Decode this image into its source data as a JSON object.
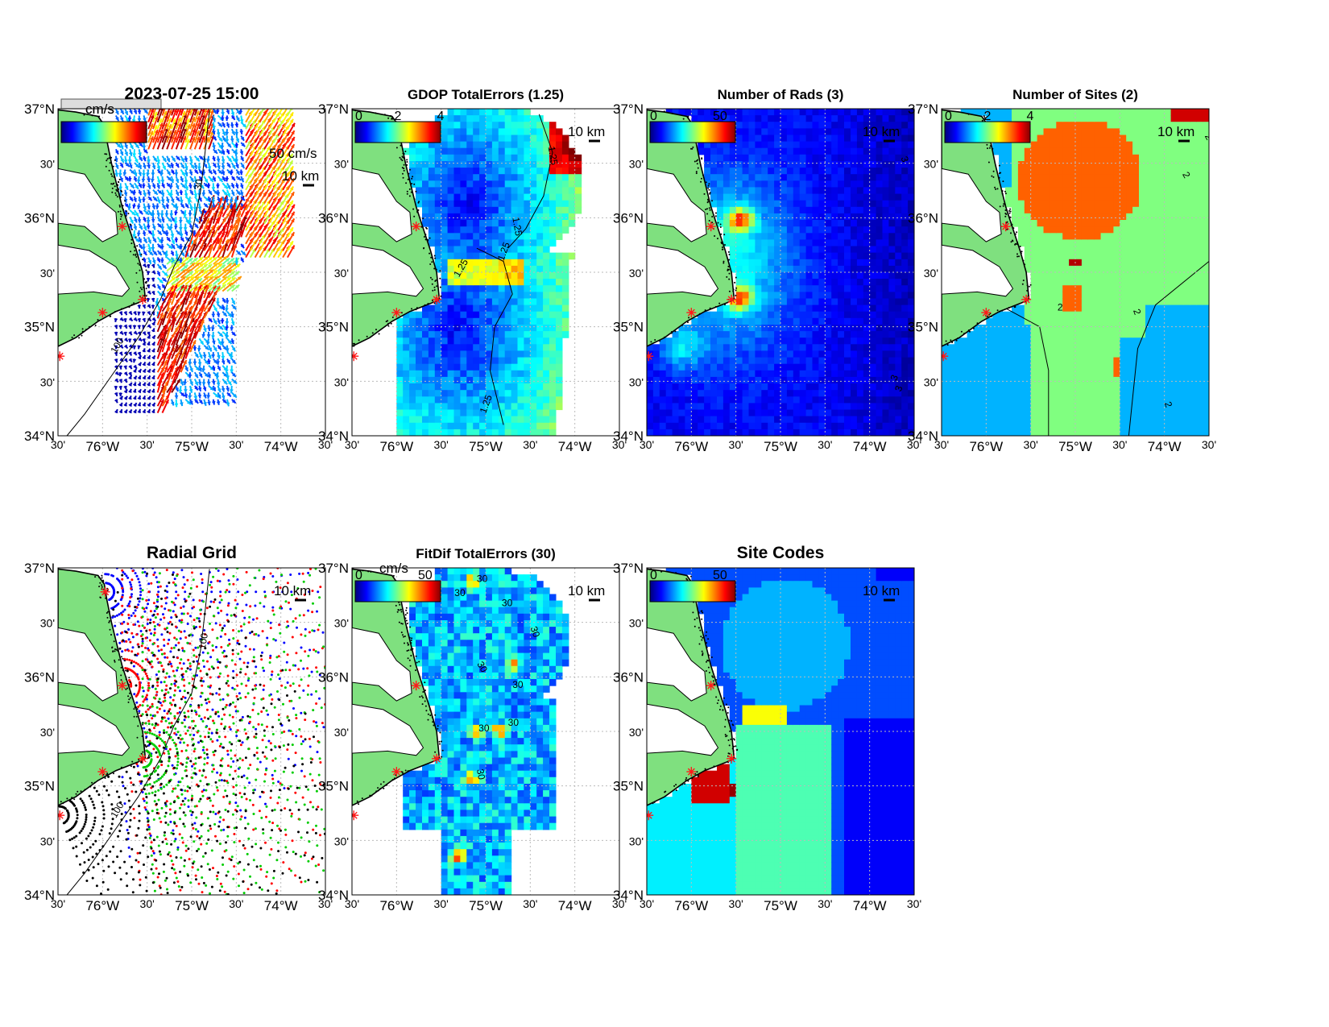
{
  "figure": {
    "lat_ticks": [
      "37°N",
      "30'",
      "36°N",
      "30'",
      "35°N",
      "30'",
      "34°N"
    ],
    "lon_ticks": [
      "30'",
      "76°W",
      "30'",
      "75°W",
      "30'",
      "74°W",
      "30'"
    ],
    "scale_bar_label": "10 km",
    "lat_range": [
      34,
      37
    ],
    "lon_range": [
      -76.5,
      -73.5
    ]
  },
  "panels": [
    {
      "id": "total-vectors",
      "title": "2023-07-25 15:00",
      "colorbar": {
        "unit_label": "cm/s",
        "tick_labels": []
      },
      "legend_vector_label": "50 cm/s",
      "contour_labels": [
        "100",
        "30"
      ],
      "field": "currents"
    },
    {
      "id": "gdop",
      "title": "GDOP TotalErrors (1.25)",
      "colorbar": {
        "unit_label": "",
        "tick_labels": [
          "0",
          "2",
          "4"
        ]
      },
      "contour_labels": [
        "1.25",
        "1.25",
        "1.25",
        "1.25",
        "1.25"
      ],
      "field": "gdop"
    },
    {
      "id": "num-rads",
      "title": "Number of Rads (3)",
      "colorbar": {
        "unit_label": "",
        "tick_labels": [
          "0",
          "50"
        ]
      },
      "contour_labels": [
        "3",
        "3",
        "3"
      ],
      "field": "rads"
    },
    {
      "id": "num-sites",
      "title": "Number of Sites (2)",
      "colorbar": {
        "unit_label": "",
        "tick_labels": [
          "0",
          "2",
          "4"
        ]
      },
      "contour_labels": [
        "2",
        "2",
        "2",
        "2",
        "2"
      ],
      "field": "sites"
    },
    {
      "id": "radial-grid",
      "title": "Radial Grid",
      "colorbar": null,
      "contour_labels": [
        "100",
        "100"
      ],
      "field": "radial"
    },
    {
      "id": "fitdif",
      "title": "FitDif TotalErrors (30)",
      "colorbar": {
        "unit_label": "cm/s",
        "tick_labels": [
          "0",
          "50"
        ]
      },
      "contour_labels": [
        "30",
        "30",
        "30",
        "30",
        "30",
        "30",
        "30",
        "30",
        "30"
      ],
      "field": "fitdif"
    },
    {
      "id": "site-codes",
      "title": "Site Codes",
      "colorbar": {
        "unit_label": "",
        "tick_labels": [
          "0",
          "50"
        ]
      },
      "contour_labels": [],
      "field": "codes"
    }
  ],
  "colors": {
    "land": "#7fe07f",
    "site_marker": "#ff1a1a",
    "radial_site_colors": [
      "#0000ff",
      "#ff0000",
      "#00cc00",
      "#000000"
    ]
  }
}
